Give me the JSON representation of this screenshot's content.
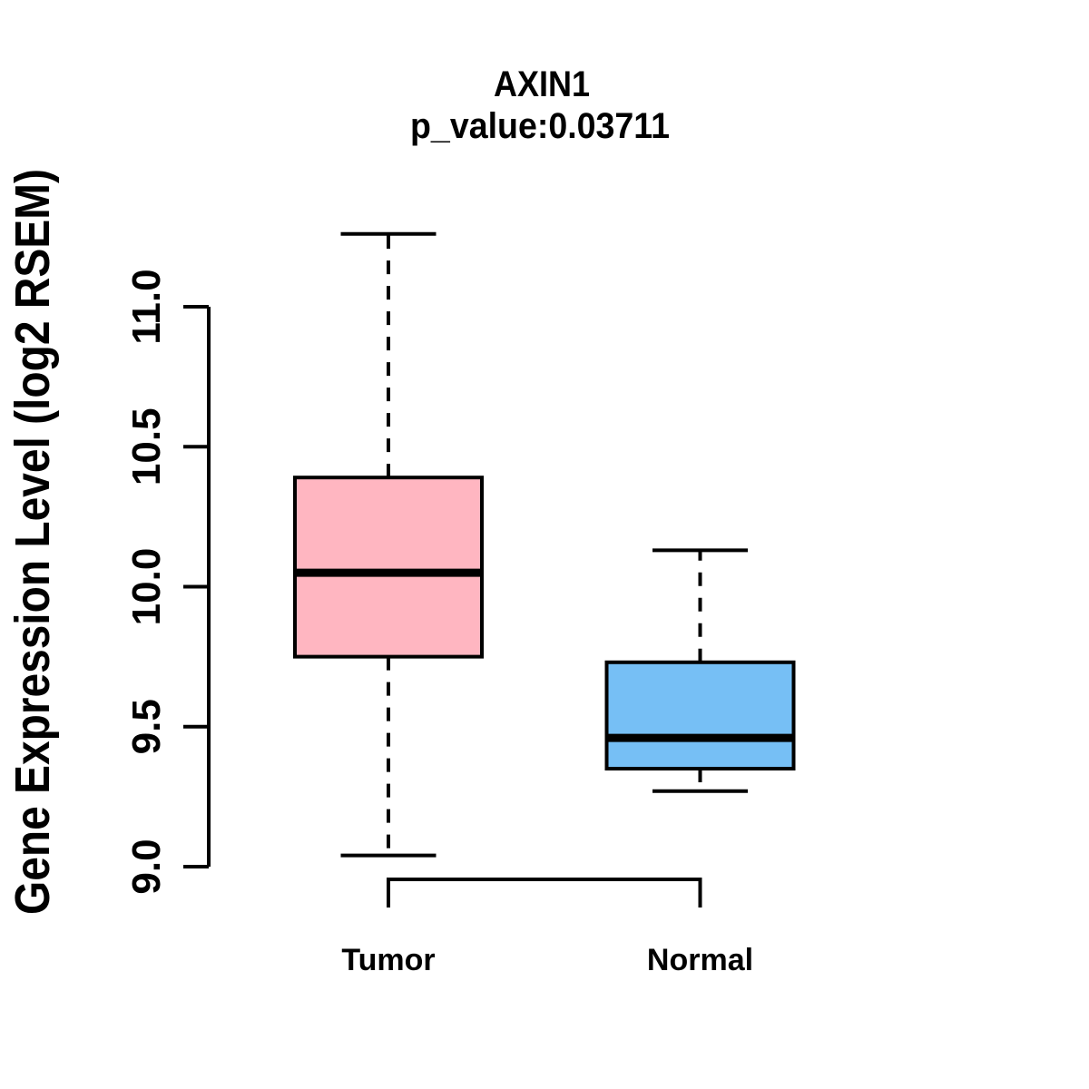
{
  "chart_data": {
    "type": "boxplot",
    "title": "AXIN1",
    "subtitle": "p_value:0.03711",
    "gene": "AXIN1",
    "p_value": "0.03711",
    "ylabel": "Gene Expression Level (log2 RSEM)",
    "xlabel": "",
    "ylim": [
      9.0,
      11.0
    ],
    "yticks": [
      "9.0",
      "9.5",
      "10.0",
      "10.5",
      "11.0"
    ],
    "categories": [
      "Tumor",
      "Normal"
    ],
    "series": [
      {
        "name": "Tumor",
        "fill_color": "#FFB6C1",
        "stats": {
          "whisker_low": 9.04,
          "q1": 9.75,
          "median": 10.05,
          "q3": 10.39,
          "whisker_high": 11.26
        }
      },
      {
        "name": "Normal",
        "fill_color": "#76BFF5",
        "stats": {
          "whisker_low": 9.27,
          "q1": 9.35,
          "median": 9.46,
          "q3": 9.73,
          "whisker_high": 10.13
        }
      }
    ],
    "grid": false,
    "legend_position": "none",
    "line_color": "#000000",
    "whisker_style": "dashed"
  }
}
